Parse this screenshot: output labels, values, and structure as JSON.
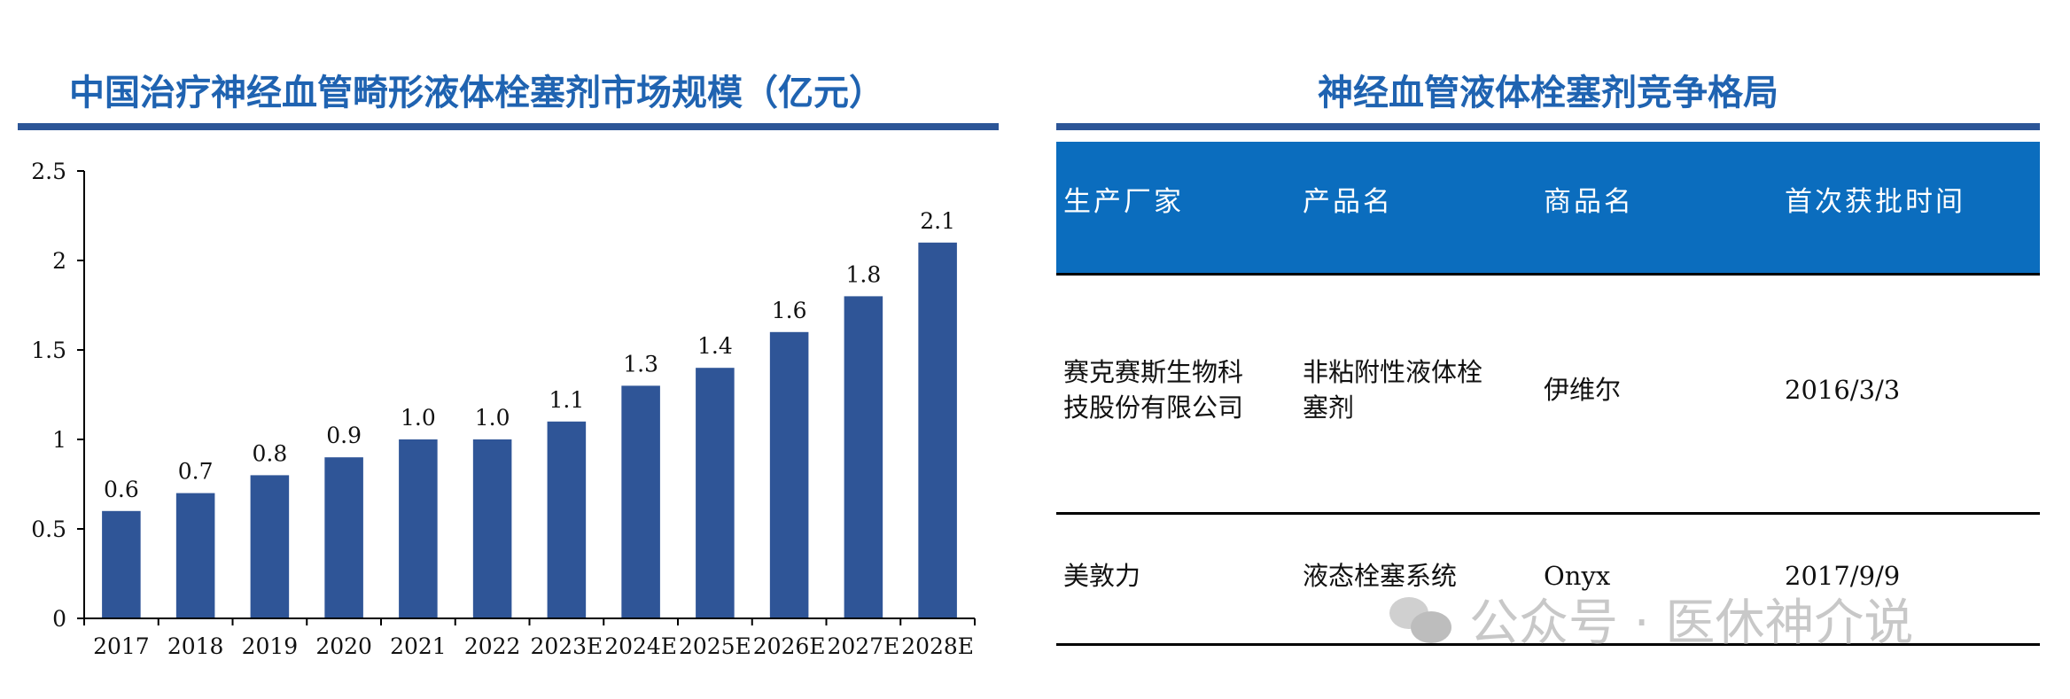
{
  "left_panel": {
    "title": "中国治疗神经血管畸形液体栓塞剂市场规模（亿元）"
  },
  "right_panel": {
    "title": "神经血管液体栓塞剂竞争格局",
    "headers": [
      "生产厂家",
      "产品名",
      "商品名",
      "首次获批时间"
    ],
    "rows": [
      {
        "manufacturer": [
          "赛克赛斯生物科",
          "技股份有限公司"
        ],
        "product": [
          "非粘附性液体栓",
          "塞剂"
        ],
        "brand": "伊维尔",
        "approval": "2016/3/3"
      },
      {
        "manufacturer": [
          "美敦力"
        ],
        "product": [
          "液态栓塞系统"
        ],
        "brand": "Onyx",
        "approval": "2017/9/9"
      }
    ]
  },
  "watermark": {
    "text": "公众号 · 医休神介说",
    "icon": "wechat-icon"
  },
  "chart_data": {
    "type": "bar",
    "title": "中国治疗神经血管畸形液体栓塞剂市场规模（亿元）",
    "categories": [
      "2017",
      "2018",
      "2019",
      "2020",
      "2021",
      "2022",
      "2023E",
      "2024E",
      "2025E",
      "2026E",
      "2027E",
      "2028E"
    ],
    "values": [
      0.6,
      0.7,
      0.8,
      0.9,
      1.0,
      1.0,
      1.1,
      1.3,
      1.4,
      1.6,
      1.8,
      2.1
    ],
    "data_labels": [
      "0.6",
      "0.7",
      "0.8",
      "0.9",
      "1.0",
      "1.0",
      "1.1",
      "1.3",
      "1.4",
      "1.6",
      "1.8",
      "2.1"
    ],
    "yticks": [
      "0",
      "0.5",
      "1",
      "1.5",
      "2",
      "2.5"
    ],
    "ylim": [
      0,
      2.5
    ],
    "grid": false,
    "bar_color": "#2f5597"
  }
}
